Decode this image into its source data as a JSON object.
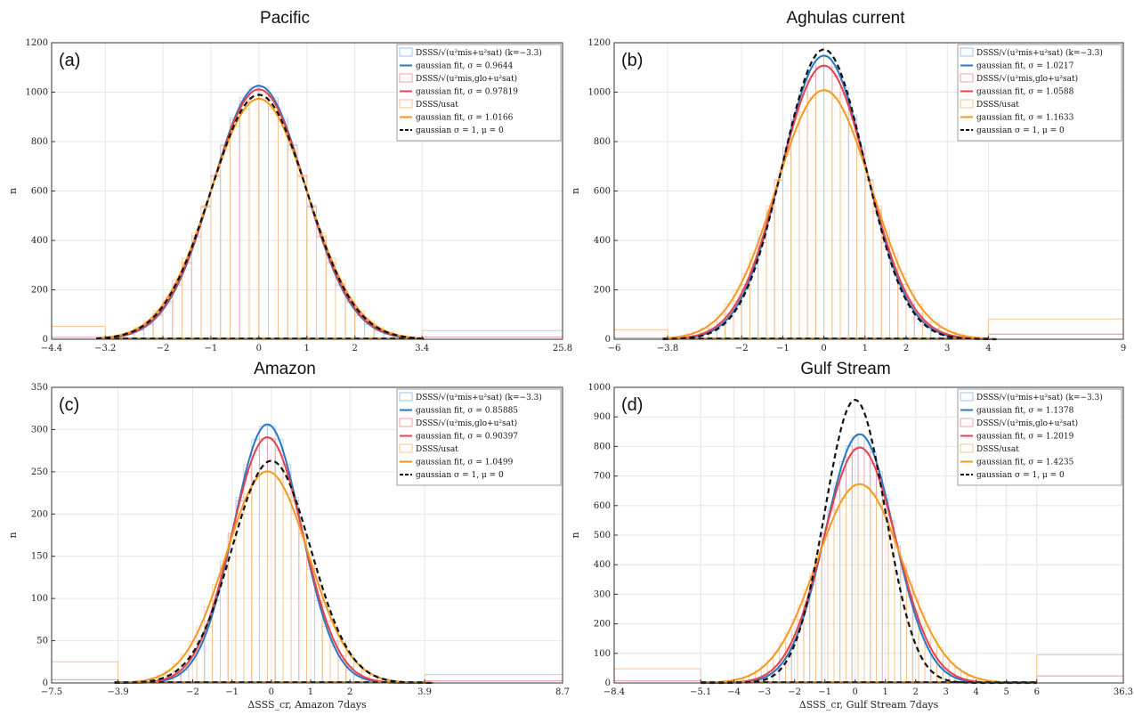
{
  "chart_data": [
    {
      "type": "bar",
      "panel": "(a)",
      "title": "Pacific",
      "ylabel": "n",
      "xlabel": "",
      "xlim": [
        -4.4,
        25.8
      ],
      "ylim": [
        0,
        1200
      ],
      "xbreaks": [
        -4.4,
        -3.2,
        3.4,
        25.8
      ],
      "xticks": [
        -4.4,
        -3.2,
        -2,
        -1,
        0,
        1,
        2,
        3.4,
        25.8
      ],
      "yticks": [
        0,
        200,
        400,
        600,
        800,
        1000,
        1200
      ],
      "total": 12400,
      "hist_scale": 1.0,
      "series": [
        {
          "name": "DSSS/√(u²mis+u²sat) (k=−3.3)",
          "kind": "hist",
          "color": "#9fc6e6",
          "sigma": 0.9644
        },
        {
          "name": "gaussian fit, σ = 0.9644",
          "kind": "fit",
          "color": "#2a77c0",
          "sigma": 0.9644,
          "mu": 0
        },
        {
          "name": "DSSS/√(u²mis,glo+u²sat)",
          "kind": "hist",
          "color": "#f2a1a8",
          "sigma": 0.97819
        },
        {
          "name": "gaussian fit, σ = 0.97819",
          "kind": "fit",
          "color": "#e8414e",
          "sigma": 0.97819,
          "mu": 0
        },
        {
          "name": "DSSS/usat",
          "kind": "hist",
          "color": "#f7c58c",
          "sigma": 1.0166
        },
        {
          "name": "gaussian fit, σ = 1.0166",
          "kind": "fit",
          "color": "#f29a20",
          "sigma": 1.0166,
          "mu": 0
        },
        {
          "name": "gaussian σ = 1, μ = 0",
          "kind": "ref",
          "color": "#111111",
          "sigma": 1,
          "mu": 0
        }
      ],
      "outer_bins": {
        "left": 52,
        "right": 35
      }
    },
    {
      "type": "bar",
      "panel": "(b)",
      "title": "Aghulas current",
      "ylabel": "n",
      "xlabel": "",
      "xlim": [
        -6,
        9
      ],
      "ylim": [
        0,
        1200
      ],
      "xbreaks": [
        -6,
        -3.8,
        4,
        9
      ],
      "xticks": [
        -6,
        -3.8,
        -2,
        -1,
        0,
        1,
        2,
        3,
        4,
        9
      ],
      "yticks": [
        0,
        200,
        400,
        600,
        800,
        1000,
        1200
      ],
      "total": 14700,
      "hist_scale": 1.0,
      "series": [
        {
          "name": "DSSS/√(u²mis+u²sat) (k=−3.3)",
          "kind": "hist",
          "color": "#9fc6e6",
          "sigma": 1.0217
        },
        {
          "name": "gaussian fit, σ = 1.0217",
          "kind": "fit",
          "color": "#2a77c0",
          "sigma": 1.0217,
          "mu": 0
        },
        {
          "name": "DSSS/√(u²mis,glo+u²sat)",
          "kind": "hist",
          "color": "#f2a1a8",
          "sigma": 1.0588
        },
        {
          "name": "gaussian fit, σ = 1.0588",
          "kind": "fit",
          "color": "#e8414e",
          "sigma": 1.0588,
          "mu": 0
        },
        {
          "name": "DSSS/usat",
          "kind": "hist",
          "color": "#f7c58c",
          "sigma": 1.1633
        },
        {
          "name": "gaussian fit, σ = 1.1633",
          "kind": "fit",
          "color": "#f29a20",
          "sigma": 1.1633,
          "mu": 0
        },
        {
          "name": "gaussian σ = 1, μ = 0",
          "kind": "ref",
          "color": "#111111",
          "sigma": 1,
          "mu": 0
        }
      ],
      "outer_bins": {
        "left": 38,
        "right": 82
      }
    },
    {
      "type": "bar",
      "panel": "(c)",
      "title": "Amazon",
      "ylabel": "n",
      "xlabel": "ΔSSS_cr, Amazon 7days",
      "xlim": [
        -7.5,
        8.7
      ],
      "ylim": [
        0,
        350
      ],
      "xbreaks": [
        -7.5,
        -3.9,
        3.9,
        8.7
      ],
      "xticks": [
        -7.5,
        -3.9,
        -2,
        -1,
        0,
        1,
        2,
        3.9,
        8.7
      ],
      "yticks": [
        0,
        50,
        100,
        150,
        200,
        250,
        300,
        350
      ],
      "total": 3200,
      "mu_shift": -0.1,
      "hist_scale": 1.03,
      "series": [
        {
          "name": "DSSS/√(u²mis+u²sat) (k=−3.3)",
          "kind": "hist",
          "color": "#9fc6e6",
          "sigma": 0.85885
        },
        {
          "name": "gaussian fit, σ = 0.85885",
          "kind": "fit",
          "color": "#2a77c0",
          "sigma": 0.85885,
          "mu": -0.1
        },
        {
          "name": "DSSS/√(u²mis,glo+u²sat)",
          "kind": "hist",
          "color": "#f2a1a8",
          "sigma": 0.90397
        },
        {
          "name": "gaussian fit, σ = 0.90397",
          "kind": "fit",
          "color": "#e8414e",
          "sigma": 0.90397,
          "mu": -0.1
        },
        {
          "name": "DSSS/usat",
          "kind": "hist",
          "color": "#f7c58c",
          "sigma": 1.0499
        },
        {
          "name": "gaussian fit, σ = 1.0499",
          "kind": "fit",
          "color": "#f29a20",
          "sigma": 1.0499,
          "mu": -0.1
        },
        {
          "name": "gaussian σ = 1, μ = 0",
          "kind": "ref",
          "color": "#111111",
          "sigma": 1,
          "mu": 0
        }
      ],
      "outer_bins": {
        "left": 25,
        "right": 10
      }
    },
    {
      "type": "bar",
      "panel": "(d)",
      "title": "Gulf Stream",
      "ylabel": "n",
      "xlabel": "ΔSSS_cr, Gulf Stream 7days",
      "xlim": [
        -8.4,
        36.3
      ],
      "ylim": [
        0,
        1000
      ],
      "xbreaks": [
        -8.4,
        -5.1,
        6,
        36.3
      ],
      "xticks": [
        -8.4,
        -5.1,
        -4,
        -3,
        -2,
        -1,
        0,
        1,
        2,
        3,
        4,
        5,
        6,
        36.3
      ],
      "yticks": [
        0,
        100,
        200,
        300,
        400,
        500,
        600,
        700,
        800,
        900,
        1000
      ],
      "total": 12000,
      "mu_shift": 0.15,
      "hist_scale": 1.0,
      "series": [
        {
          "name": "DSSS/√(u²mis+u²sat) (k=−3.3)",
          "kind": "hist",
          "color": "#9fc6e6",
          "sigma": 1.1378
        },
        {
          "name": "gaussian fit, σ = 1.1378",
          "kind": "fit",
          "color": "#2a77c0",
          "sigma": 1.1378,
          "mu": 0.15
        },
        {
          "name": "DSSS/√(u²mis,glo+u²sat)",
          "kind": "hist",
          "color": "#f2a1a8",
          "sigma": 1.2019
        },
        {
          "name": "gaussian fit, σ = 1.2019",
          "kind": "fit",
          "color": "#e8414e",
          "sigma": 1.2019,
          "mu": 0.15
        },
        {
          "name": "DSSS/usat",
          "kind": "hist",
          "color": "#f7c58c",
          "sigma": 1.4235
        },
        {
          "name": "gaussian fit, σ = 1.4235",
          "kind": "fit",
          "color": "#f29a20",
          "sigma": 1.4235,
          "mu": 0.15
        },
        {
          "name": "gaussian σ = 1, μ = 0",
          "kind": "ref",
          "color": "#111111",
          "sigma": 1,
          "mu": 0
        }
      ],
      "outer_bins": {
        "left": 48,
        "right": 95
      }
    }
  ]
}
